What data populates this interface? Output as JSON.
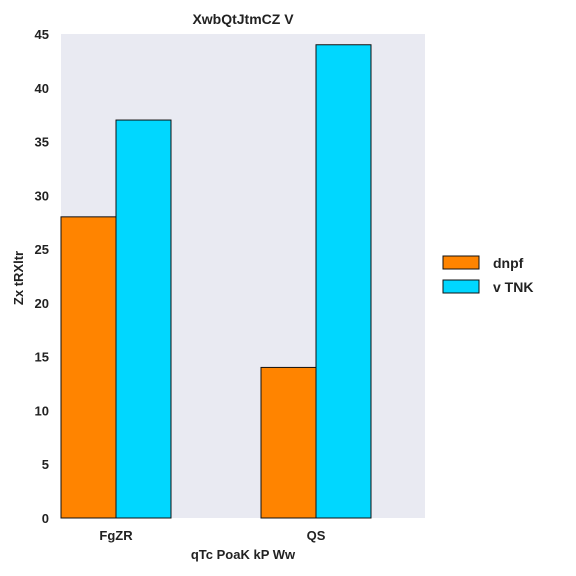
{
  "chart_data": {
    "type": "bar",
    "title": "XwbQtJtmCZ   V",
    "xlabel": "qTc PoaK kP Ww",
    "ylabel": "Zx tRXltr",
    "categories": [
      "FgZR",
      "QS"
    ],
    "series": [
      {
        "name": "dnpf",
        "values": [
          28,
          14
        ],
        "color": "#ff8400"
      },
      {
        "name": "v TNK",
        "values": [
          37,
          44
        ],
        "color": "#00d7ff"
      }
    ],
    "ylim": [
      0,
      45
    ],
    "yticks": [
      0,
      5,
      10,
      15,
      20,
      25,
      30,
      35,
      40,
      45
    ],
    "grid": false,
    "legend_position": "right",
    "plot_background": "#e9eaf2"
  }
}
